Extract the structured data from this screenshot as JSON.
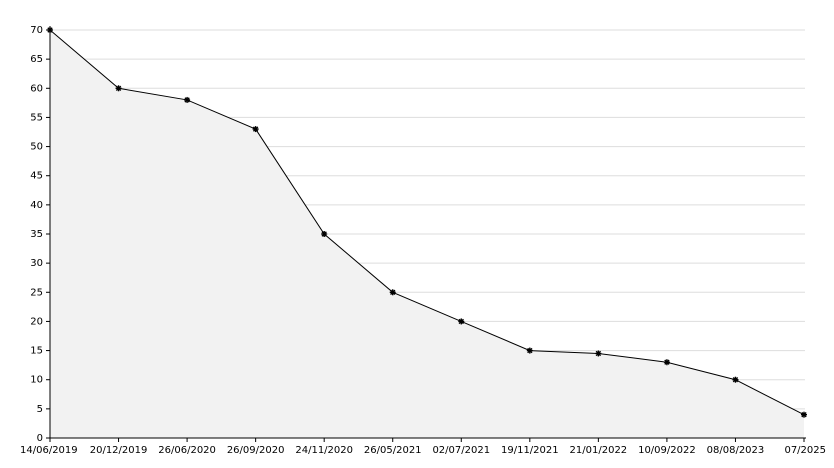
{
  "chart_data": {
    "type": "area",
    "categories": [
      "14/06/2019",
      "20/12/2019",
      "26/06/2020",
      "26/09/2020",
      "24/11/2020",
      "26/05/2021",
      "02/07/2021",
      "19/11/2021",
      "21/01/2022",
      "10/09/2022",
      "08/08/2023",
      "07/2025"
    ],
    "values": [
      70,
      60,
      58,
      53,
      35,
      25,
      20,
      15,
      14.5,
      13,
      10,
      4
    ],
    "color": "#000000",
    "fill_color": "#f2f2f2",
    "ylim": [
      0,
      70
    ],
    "yticks": [
      0,
      5,
      10,
      15,
      20,
      25,
      30,
      35,
      40,
      45,
      50,
      55,
      60,
      65,
      70
    ],
    "grid": true
  }
}
